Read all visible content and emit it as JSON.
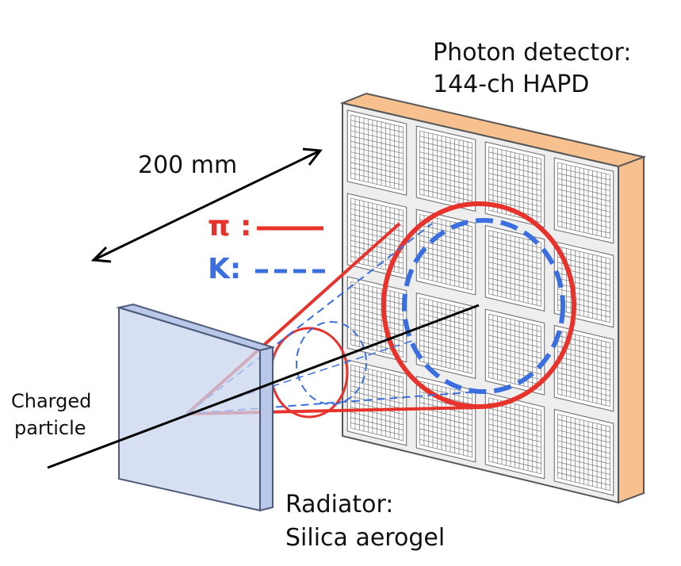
{
  "labels": {
    "photon_detector_line1": "Photon detector:",
    "photon_detector_line2": "144-ch HAPD",
    "distance": "200 mm",
    "charged_line1": "Charged",
    "charged_line2": "particle",
    "radiator_line1": "Radiator:",
    "radiator_line2": "Silica aerogel"
  },
  "legend": {
    "pion": {
      "symbol": "π :",
      "style": "solid",
      "color": "#e8322c"
    },
    "kaon": {
      "symbol": "K:",
      "style": "dashed",
      "color": "#3b6fe0"
    }
  },
  "detector": {
    "rows": 4,
    "cols": 4,
    "frame_color": "#f7c08f",
    "module_color": "#ffffff",
    "grid_color": "#777777"
  },
  "radiator": {
    "color": "#c9d6ee"
  }
}
